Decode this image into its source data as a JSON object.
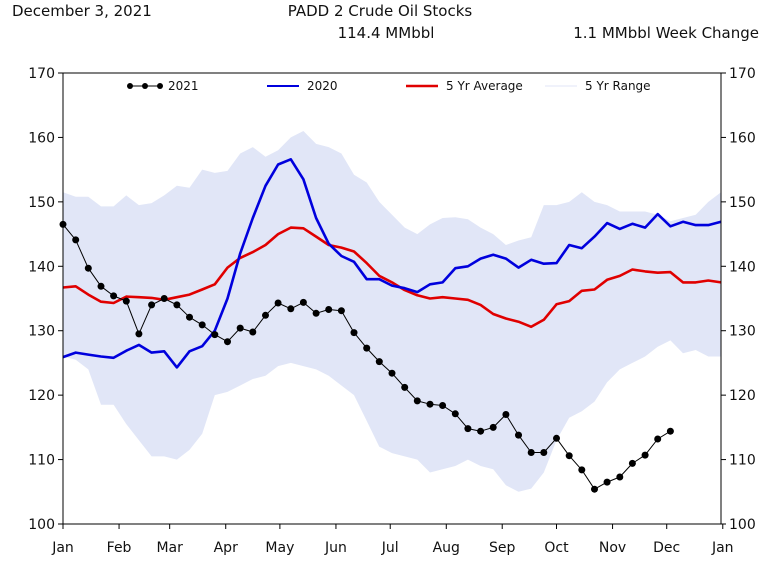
{
  "header": {
    "date": "December 3, 2021",
    "title": "PADD 2 Crude Oil Stocks",
    "current_stock": "114.4 MMbbl",
    "week_change": "1.1 MMbbl Week Change"
  },
  "chart_data": {
    "type": "line",
    "title": "PADD 2 Crude Oil Stocks",
    "xlabel": "",
    "ylabel": "",
    "ylim": [
      100,
      170
    ],
    "yticks": [
      100,
      110,
      120,
      130,
      140,
      150,
      160,
      170
    ],
    "yticklabels": [
      "100",
      "110",
      "120",
      "130",
      "140",
      "150",
      "160",
      "170"
    ],
    "x_range": [
      0,
      52
    ],
    "xticks": [
      0,
      4.43,
      8.43,
      12.86,
      17.14,
      21.57,
      25.86,
      30.29,
      34.71,
      39,
      43.43,
      47.71,
      52.14
    ],
    "xticklabels": [
      "Jan",
      "Feb",
      "Mar",
      "Apr",
      "May",
      "Jun",
      "Jul",
      "Aug",
      "Sep",
      "Oct",
      "Nov",
      "Dec",
      "Jan"
    ],
    "legend": [
      "2021",
      "2020",
      "5 Yr Average",
      "5 Yr Range"
    ],
    "legend_placement": "top",
    "colors": {
      "2021": "#000000",
      "2020": "#0000dd",
      "avg": "#e00000",
      "range": "#e1e6f7"
    },
    "series": [
      {
        "name": "2021",
        "x": [
          0,
          1,
          2,
          3,
          4,
          5,
          6,
          7,
          8,
          9,
          10,
          11,
          12,
          13,
          14,
          15,
          16,
          17,
          18,
          19,
          20,
          21,
          22,
          23,
          24,
          25,
          26,
          27,
          28,
          29,
          30,
          31,
          32,
          33,
          34,
          35,
          36,
          37,
          38,
          39,
          40,
          41,
          42,
          43,
          44,
          45,
          46,
          47,
          48
        ],
        "values": [
          146.5,
          144.1,
          139.7,
          136.9,
          135.4,
          134.6,
          129.5,
          134.0,
          135.0,
          134.0,
          132.1,
          130.9,
          129.4,
          128.3,
          130.4,
          129.8,
          132.4,
          134.3,
          133.4,
          134.4,
          132.7,
          133.3,
          133.1,
          129.7,
          127.3,
          125.2,
          123.4,
          121.2,
          119.1,
          118.6,
          118.4,
          117.1,
          114.8,
          114.4,
          115.0,
          117.0,
          113.8,
          111.1,
          111.1,
          113.3,
          110.6,
          108.4,
          105.4,
          106.5,
          107.3,
          109.4,
          110.7,
          113.2,
          114.4
        ]
      },
      {
        "name": "2020",
        "x": [
          0,
          1,
          2,
          3,
          4,
          5,
          6,
          7,
          8,
          9,
          10,
          11,
          12,
          13,
          14,
          15,
          16,
          17,
          18,
          19,
          20,
          21,
          22,
          23,
          24,
          25,
          26,
          27,
          28,
          29,
          30,
          31,
          32,
          33,
          34,
          35,
          36,
          37,
          38,
          39,
          40,
          41,
          42,
          43,
          44,
          45,
          46,
          47,
          48,
          49,
          50,
          51,
          52
        ],
        "values": [
          125.9,
          126.6,
          126.3,
          126.0,
          125.8,
          126.9,
          127.8,
          126.6,
          126.8,
          124.3,
          126.8,
          127.6,
          130.0,
          135.0,
          142.0,
          147.5,
          152.5,
          155.8,
          156.6,
          153.5,
          147.5,
          143.5,
          141.6,
          140.7,
          138.0,
          138.0,
          137.0,
          136.6,
          136.0,
          137.2,
          137.5,
          139.7,
          140.0,
          141.2,
          141.8,
          141.2,
          139.8,
          141.0,
          140.4,
          140.5,
          143.3,
          142.8,
          144.6,
          146.7,
          145.8,
          146.6,
          146.0,
          148.1,
          146.2,
          146.9,
          146.4,
          146.4,
          146.9
        ]
      },
      {
        "name": "5 Yr Average",
        "x": [
          0,
          1,
          2,
          3,
          4,
          5,
          6,
          7,
          8,
          9,
          10,
          11,
          12,
          13,
          14,
          15,
          16,
          17,
          18,
          19,
          20,
          21,
          22,
          23,
          24,
          25,
          26,
          27,
          28,
          29,
          30,
          31,
          32,
          33,
          34,
          35,
          36,
          37,
          38,
          39,
          40,
          41,
          42,
          43,
          44,
          45,
          46,
          47,
          48,
          49,
          50,
          51,
          52
        ],
        "values": [
          136.7,
          136.9,
          135.6,
          134.5,
          134.3,
          135.3,
          135.2,
          135.1,
          134.8,
          135.2,
          135.6,
          136.4,
          137.2,
          139.8,
          141.3,
          142.2,
          143.3,
          145.0,
          146.0,
          145.9,
          144.6,
          143.3,
          142.9,
          142.3,
          140.5,
          138.5,
          137.5,
          136.3,
          135.5,
          135.0,
          135.2,
          135.0,
          134.8,
          134.0,
          132.6,
          131.9,
          131.4,
          130.6,
          131.7,
          134.1,
          134.6,
          136.2,
          136.4,
          137.9,
          138.5,
          139.5,
          139.2,
          139.0,
          139.1,
          137.5,
          137.5,
          137.8,
          137.5
        ]
      },
      {
        "name": "5 Yr Range",
        "x": [
          0,
          1,
          2,
          3,
          4,
          5,
          6,
          7,
          8,
          9,
          10,
          11,
          12,
          13,
          14,
          15,
          16,
          17,
          18,
          19,
          20,
          21,
          22,
          23,
          24,
          25,
          26,
          27,
          28,
          29,
          30,
          31,
          32,
          33,
          34,
          35,
          36,
          37,
          38,
          39,
          40,
          41,
          42,
          43,
          44,
          45,
          46,
          47,
          48,
          49,
          50,
          51,
          52
        ],
        "high": [
          151.5,
          150.8,
          150.8,
          149.3,
          149.3,
          151.0,
          149.5,
          149.8,
          151.0,
          152.5,
          152.2,
          155.0,
          154.5,
          154.8,
          157.5,
          158.5,
          157.0,
          158.0,
          160.0,
          161.0,
          159.0,
          158.5,
          157.5,
          154.2,
          153.0,
          150.0,
          148.0,
          146.0,
          145.0,
          146.5,
          147.5,
          147.6,
          147.3,
          146.0,
          145.0,
          143.3,
          144.0,
          144.5,
          149.5,
          149.5,
          150.0,
          151.5,
          150.0,
          149.5,
          148.5,
          148.5,
          148.5,
          148.0,
          147.0,
          147.5,
          148.0,
          150.0,
          151.5
        ],
        "low": [
          126.0,
          125.5,
          124.0,
          118.5,
          118.5,
          115.5,
          113.0,
          110.5,
          110.5,
          110.0,
          111.5,
          114.0,
          120.0,
          120.5,
          121.5,
          122.5,
          123.0,
          124.5,
          125.0,
          124.5,
          124.0,
          123.0,
          121.5,
          120.0,
          116.0,
          112.0,
          111.0,
          110.5,
          110.0,
          108.0,
          108.5,
          109.0,
          110.0,
          109.0,
          108.5,
          106.0,
          105.0,
          105.5,
          108.0,
          113.0,
          116.5,
          117.5,
          119.0,
          122.0,
          124.0,
          125.0,
          126.0,
          127.5,
          128.5,
          126.5,
          127.0,
          126.0,
          126.0
        ]
      }
    ]
  }
}
